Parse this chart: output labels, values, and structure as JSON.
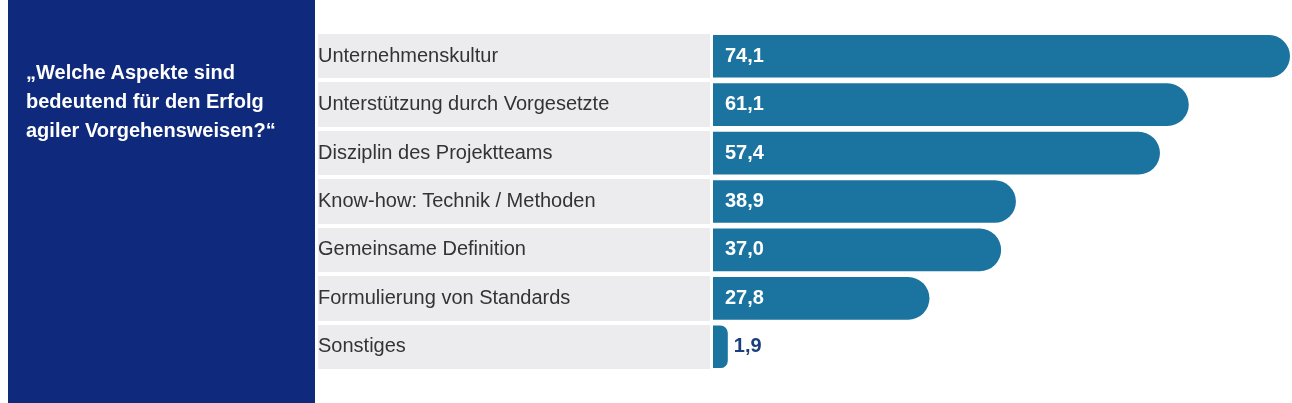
{
  "chart_data": {
    "type": "bar",
    "orientation": "horizontal",
    "title": "„Welche Aspekte sind bedeutend für den Erfolg agiler Vorgehensweisen?“",
    "categories": [
      "Unternehmenskultur",
      "Unterstützung durch Vorgesetzte",
      "Disziplin des Projektteams",
      "Know-how: Technik / Methoden",
      "Gemeinsame Definition",
      "Formulierung von Standards",
      "Sonstiges"
    ],
    "values": [
      74.1,
      61.1,
      57.4,
      38.9,
      37.0,
      27.8,
      1.9
    ],
    "value_labels": [
      "74,1",
      "61,1",
      "57,4",
      "38,9",
      "37,0",
      "27,8",
      "1,9"
    ],
    "color": "#1b73a0",
    "grid": false,
    "legend": false
  }
}
